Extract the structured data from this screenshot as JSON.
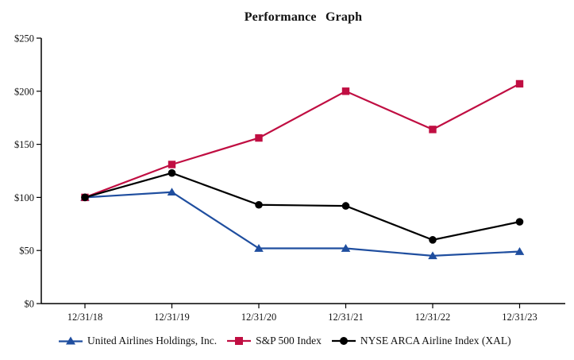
{
  "chart_data": {
    "type": "line",
    "title": "Performance Graph",
    "categories": [
      "12/31/18",
      "12/31/19",
      "12/31/20",
      "12/31/21",
      "12/31/22",
      "12/31/23"
    ],
    "series": [
      {
        "name": "United Airlines Holdings, Inc.",
        "marker": "triangle",
        "color": "#1F4E9F",
        "values": [
          100,
          105,
          52,
          52,
          45,
          49
        ]
      },
      {
        "name": "S&P 500 Index",
        "marker": "square",
        "color": "#C00E42",
        "values": [
          100,
          131,
          156,
          200,
          164,
          207
        ]
      },
      {
        "name": "NYSE ARCA Airline Index (XAL)",
        "marker": "circle",
        "color": "#000000",
        "values": [
          100,
          123,
          93,
          92,
          60,
          77
        ]
      }
    ],
    "xlabel": "",
    "ylabel": "",
    "ylim": [
      0,
      250
    ],
    "y_ticks": {
      "labels": [
        "$0",
        "$50",
        "$100",
        "$150",
        "$200",
        "$250"
      ],
      "values": [
        0,
        50,
        100,
        150,
        200,
        250
      ]
    },
    "grid": false,
    "legend_position": "bottom",
    "axis_color": "#000000",
    "background_color": "#FFFFFF"
  }
}
